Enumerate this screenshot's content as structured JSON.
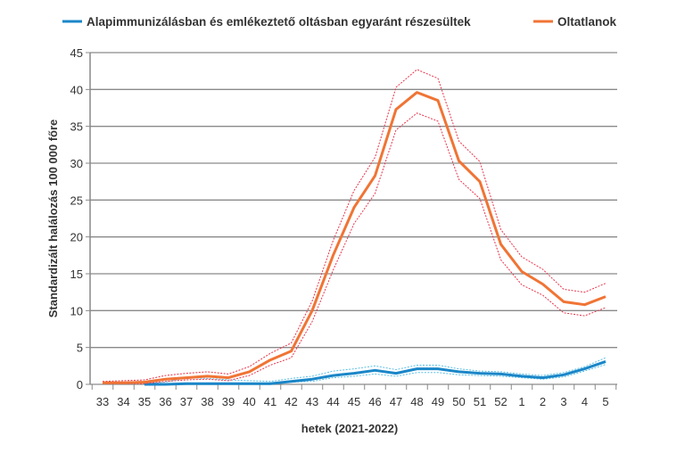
{
  "chart_data": {
    "type": "line",
    "title": "",
    "xlabel": "hetek (2021-2022)",
    "ylabel": "Standardizált halálozás 100 000 főre",
    "ylim": [
      0,
      45
    ],
    "yticks": [
      0,
      5,
      10,
      15,
      20,
      25,
      30,
      35,
      40,
      45
    ],
    "grid": true,
    "legend_position": "top",
    "categories": [
      "33",
      "34",
      "35",
      "36",
      "37",
      "38",
      "39",
      "40",
      "41",
      "42",
      "43",
      "44",
      "45",
      "46",
      "47",
      "48",
      "49",
      "50",
      "51",
      "52",
      "1",
      "2",
      "3",
      "4",
      "5"
    ],
    "series": [
      {
        "name": "Alapimmunizálásban és emlékeztető oltásban egyaránt részesültek",
        "color": "#1a86c8",
        "ci_color": "#5bbfe6",
        "values": [
          null,
          null,
          0,
          0,
          0.1,
          0.1,
          0.1,
          0.1,
          0.1,
          0.4,
          0.7,
          1.2,
          1.5,
          1.9,
          1.5,
          2.1,
          2.1,
          1.7,
          1.5,
          1.4,
          1.1,
          0.9,
          1.3,
          2.1,
          3.1
        ],
        "upper": [
          null,
          null,
          0.1,
          0.3,
          0.9,
          0.8,
          0.6,
          0.5,
          0.4,
          0.8,
          1.1,
          1.8,
          2.1,
          2.5,
          2.0,
          2.6,
          2.6,
          2.1,
          1.8,
          1.7,
          1.4,
          1.2,
          1.6,
          2.4,
          3.6
        ],
        "lower": [
          null,
          null,
          0,
          0,
          0,
          0,
          0,
          0,
          0,
          0.3,
          0.4,
          0.9,
          1.1,
          1.4,
          1.1,
          1.6,
          1.6,
          1.3,
          1.2,
          1.1,
          0.9,
          0.7,
          1.0,
          1.8,
          2.7
        ]
      },
      {
        "name": "Oltatlanok",
        "color": "#f07435",
        "ci_color": "#e8344a",
        "values": [
          0.2,
          0.2,
          0.3,
          0.7,
          0.9,
          1.1,
          0.9,
          1.7,
          3.3,
          4.5,
          10,
          17.5,
          24,
          28.3,
          37.3,
          39.6,
          38.5,
          30.3,
          27.5,
          19,
          15.3,
          13.6,
          11.2,
          10.8,
          11.9
        ],
        "upper": [
          0.4,
          0.5,
          0.6,
          1.2,
          1.5,
          1.7,
          1.4,
          2.4,
          4.2,
          5.6,
          11.3,
          19.5,
          26.3,
          30.8,
          40.3,
          42.7,
          41.5,
          33,
          30.2,
          21,
          17.3,
          15.6,
          12.9,
          12.5,
          13.7
        ],
        "lower": [
          0.1,
          0.1,
          0.1,
          0.4,
          0.6,
          0.7,
          0.5,
          1.2,
          2.6,
          3.6,
          8.5,
          15.5,
          21.8,
          25.9,
          34.5,
          36.8,
          35.7,
          27.8,
          25.2,
          16.9,
          13.5,
          12.1,
          9.7,
          9.3,
          10.4
        ]
      }
    ]
  }
}
